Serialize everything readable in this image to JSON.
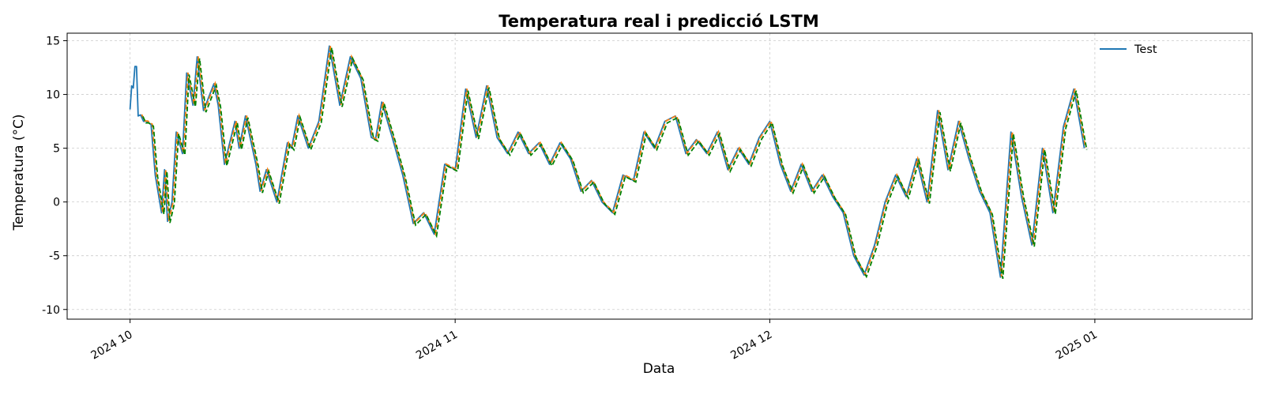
{
  "chart_data": {
    "type": "line",
    "title": "Temperatura real i predicció LSTM",
    "xlabel": "Data",
    "ylabel": "Temperatura (°C)",
    "xlim": [
      "2024-09-25",
      "2025-01-16"
    ],
    "ylim": [
      -10.9,
      15.7
    ],
    "x_ticks": [
      {
        "date": "2024-10-01",
        "label": "2024 10"
      },
      {
        "date": "2024-11-01",
        "label": "2024 11"
      },
      {
        "date": "2024-12-01",
        "label": "2024 12"
      },
      {
        "date": "2025-01-01",
        "label": "2025 01"
      }
    ],
    "y_ticks": [
      -10,
      -5,
      0,
      5,
      10,
      15
    ],
    "grid": true,
    "legend_position": "top-right",
    "colors": {
      "test": "#1f77b4",
      "batch": "#ff7f0e",
      "reinject": "#008000",
      "grid": "#cccccc"
    },
    "series": [
      {
        "name": "Test",
        "style": "solid",
        "color": "#1f77b4",
        "points": [
          [
            "2024-10-01",
            8.6
          ],
          [
            "2024-10-01",
            10.8
          ],
          [
            "2024-10-01",
            10.6
          ],
          [
            "2024-10-01",
            12.6
          ],
          [
            "2024-10-01",
            12.6
          ],
          [
            "2024-10-01",
            8.0
          ],
          [
            "2024-10-02",
            8.1
          ],
          [
            "2024-10-02",
            7.5
          ],
          [
            "2024-10-02",
            7.5
          ],
          [
            "2024-10-03",
            7.2
          ],
          [
            "2024-10-03",
            2.5
          ],
          [
            "2024-10-04",
            -1.0
          ],
          [
            "2024-10-04",
            3.0
          ],
          [
            "2024-10-04",
            -1.8
          ],
          [
            "2024-10-05",
            0.0
          ],
          [
            "2024-10-05",
            6.5
          ],
          [
            "2024-10-06",
            4.5
          ],
          [
            "2024-10-06",
            12.0
          ],
          [
            "2024-10-07",
            9.0
          ],
          [
            "2024-10-07",
            13.5
          ],
          [
            "2024-10-08",
            8.5
          ],
          [
            "2024-10-09",
            11.0
          ],
          [
            "2024-10-09",
            9.0
          ],
          [
            "2024-10-10",
            3.5
          ],
          [
            "2024-10-11",
            7.5
          ],
          [
            "2024-10-11",
            5.0
          ],
          [
            "2024-10-12",
            8.0
          ],
          [
            "2024-10-13",
            3.5
          ],
          [
            "2024-10-13",
            1.0
          ],
          [
            "2024-10-14",
            3.0
          ],
          [
            "2024-10-15",
            0.0
          ],
          [
            "2024-10-16",
            5.5
          ],
          [
            "2024-10-16",
            5.0
          ],
          [
            "2024-10-17",
            8.0
          ],
          [
            "2024-10-18",
            5.0
          ],
          [
            "2024-10-19",
            7.5
          ],
          [
            "2024-10-20",
            14.5
          ],
          [
            "2024-10-21",
            9.0
          ],
          [
            "2024-10-22",
            13.5
          ],
          [
            "2024-10-23",
            11.5
          ],
          [
            "2024-10-24",
            6.0
          ],
          [
            "2024-10-24",
            5.8
          ],
          [
            "2024-10-25",
            9.3
          ],
          [
            "2024-10-26",
            6.0
          ],
          [
            "2024-10-27",
            2.5
          ],
          [
            "2024-10-28",
            -2.0
          ],
          [
            "2024-10-29",
            -1.0
          ],
          [
            "2024-10-30",
            -3.0
          ],
          [
            "2024-10-31",
            3.5
          ],
          [
            "2024-11-01",
            3.0
          ],
          [
            "2024-11-02",
            10.5
          ],
          [
            "2024-11-03",
            6.0
          ],
          [
            "2024-11-04",
            10.8
          ],
          [
            "2024-11-05",
            6.0
          ],
          [
            "2024-11-06",
            4.5
          ],
          [
            "2024-11-07",
            6.5
          ],
          [
            "2024-11-08",
            4.5
          ],
          [
            "2024-11-09",
            5.5
          ],
          [
            "2024-11-10",
            3.5
          ],
          [
            "2024-11-11",
            5.5
          ],
          [
            "2024-11-12",
            4.0
          ],
          [
            "2024-11-13",
            1.0
          ],
          [
            "2024-11-14",
            2.0
          ],
          [
            "2024-11-15",
            0.0
          ],
          [
            "2024-11-16",
            -1.0
          ],
          [
            "2024-11-17",
            2.5
          ],
          [
            "2024-11-18",
            2.0
          ],
          [
            "2024-11-19",
            6.5
          ],
          [
            "2024-11-20",
            5.0
          ],
          [
            "2024-11-21",
            7.5
          ],
          [
            "2024-11-22",
            8.0
          ],
          [
            "2024-11-23",
            4.5
          ],
          [
            "2024-11-24",
            5.8
          ],
          [
            "2024-11-25",
            4.5
          ],
          [
            "2024-11-26",
            6.5
          ],
          [
            "2024-11-27",
            3.0
          ],
          [
            "2024-11-28",
            5.0
          ],
          [
            "2024-11-29",
            3.5
          ],
          [
            "2024-11-30",
            6.0
          ],
          [
            "2024-12-01",
            7.5
          ],
          [
            "2024-12-02",
            3.5
          ],
          [
            "2024-12-03",
            1.0
          ],
          [
            "2024-12-04",
            3.5
          ],
          [
            "2024-12-05",
            1.0
          ],
          [
            "2024-12-06",
            2.5
          ],
          [
            "2024-12-07",
            0.5
          ],
          [
            "2024-12-08",
            -1.0
          ],
          [
            "2024-12-09",
            -5.0
          ],
          [
            "2024-12-10",
            -6.8
          ],
          [
            "2024-12-11",
            -4.0
          ],
          [
            "2024-12-12",
            0.0
          ],
          [
            "2024-12-13",
            2.5
          ],
          [
            "2024-12-14",
            0.5
          ],
          [
            "2024-12-15",
            4.0
          ],
          [
            "2024-12-16",
            0.0
          ],
          [
            "2024-12-17",
            8.5
          ],
          [
            "2024-12-18",
            3.0
          ],
          [
            "2024-12-19",
            7.5
          ],
          [
            "2024-12-20",
            4.0
          ],
          [
            "2024-12-21",
            1.0
          ],
          [
            "2024-12-22",
            -1.0
          ],
          [
            "2024-12-23",
            -7.0
          ],
          [
            "2024-12-24",
            6.5
          ],
          [
            "2024-12-25",
            0.5
          ],
          [
            "2024-12-26",
            -4.0
          ],
          [
            "2024-12-27",
            5.0
          ],
          [
            "2024-12-28",
            -1.0
          ],
          [
            "2024-12-29",
            7.0
          ],
          [
            "2024-12-30",
            10.5
          ],
          [
            "2024-12-31",
            5.0
          ]
        ]
      }
    ]
  }
}
